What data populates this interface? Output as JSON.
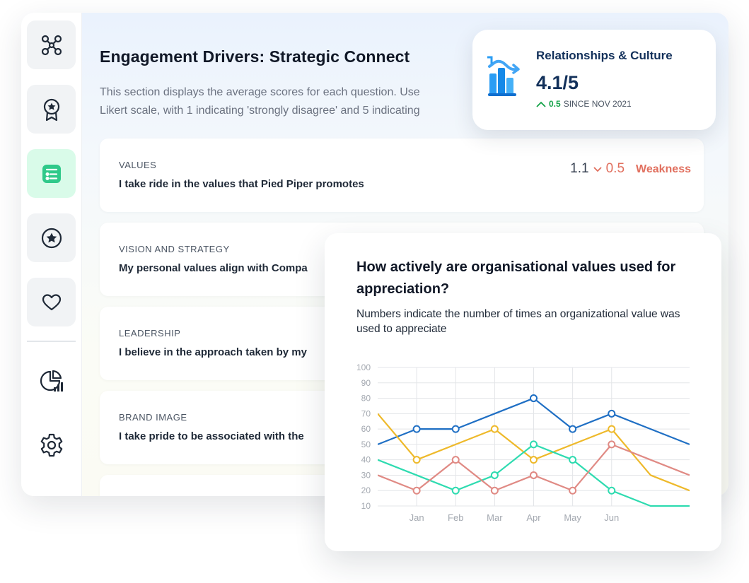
{
  "sidebar": {
    "items": [
      {
        "icon": "network-icon"
      },
      {
        "icon": "award-ribbon-icon"
      },
      {
        "icon": "list-checklist-icon",
        "active": true,
        "accent": "#2fc98a"
      },
      {
        "icon": "star-circle-icon"
      },
      {
        "icon": "heart-icon"
      },
      {
        "icon": "pie-chart-report-icon"
      },
      {
        "icon": "gear-icon"
      }
    ]
  },
  "page": {
    "title": "Engagement Drivers: Strategic Connect",
    "description_line1": "This section displays the average scores for each question. Use",
    "description_line2": "Likert scale, with 1 indicating 'strongly disagree' and 5 indicating"
  },
  "questions": [
    {
      "category": "VALUES",
      "text": "I take ride in the values that Pied Piper promotes",
      "score": "1.1",
      "change": "0.5",
      "tag": "Weakness",
      "tag_color": "#e1705f"
    },
    {
      "category": "VISION AND STRATEGY",
      "text": "My personal values align with Compa"
    },
    {
      "category": "LEADERSHIP",
      "text": "I believe in the approach taken by my"
    },
    {
      "category": "BRAND IMAGE",
      "text": "I take pride to be associated with the"
    }
  ],
  "stat_card": {
    "title": "Relationships & Culture",
    "value": "4.1/5",
    "change": "0.5",
    "since": "SINCE NOV 2021",
    "icon": "bar-chart-growth-icon",
    "accent": "#2a9df4"
  },
  "chart_card": {
    "title": "How actively are organisational values used for appreciation?",
    "subtitle": "Numbers indicate the number of times an organizational value was used to appreciate"
  },
  "chart_data": {
    "type": "line",
    "categories": [
      "Jan",
      "Feb",
      "Mar",
      "Apr",
      "May",
      "Jun"
    ],
    "x_range": [
      -1,
      7
    ],
    "y_ticks": [
      10,
      20,
      30,
      40,
      50,
      60,
      70,
      80,
      90,
      100
    ],
    "ylim": [
      10,
      100
    ],
    "grid": true,
    "series": [
      {
        "color": "#1f6fc4",
        "x": [
          -1,
          0,
          1,
          2,
          3,
          4,
          5,
          6,
          7
        ],
        "y": [
          50,
          60,
          60,
          70,
          80,
          60,
          70,
          60,
          50
        ],
        "markers": [
          0,
          1,
          3,
          4,
          5
        ]
      },
      {
        "color": "#eeb92a",
        "x": [
          -1,
          0,
          1,
          2,
          3,
          4,
          5,
          6,
          7
        ],
        "y": [
          70,
          40,
          50,
          60,
          40,
          50,
          60,
          30,
          20
        ],
        "markers": [
          0,
          2,
          3,
          5
        ]
      },
      {
        "color": "#2edbb0",
        "x": [
          -1,
          0,
          1,
          2,
          3,
          4,
          5,
          6,
          7
        ],
        "y": [
          40,
          30,
          20,
          30,
          50,
          40,
          20,
          10,
          10
        ],
        "markers": [
          1,
          2,
          3,
          4,
          5
        ]
      },
      {
        "color": "#e08a84",
        "x": [
          -1,
          0,
          1,
          2,
          3,
          4,
          5,
          6,
          7
        ],
        "y": [
          30,
          20,
          40,
          20,
          30,
          20,
          50,
          40,
          30
        ],
        "markers": [
          0,
          1,
          2,
          3,
          4,
          5
        ]
      }
    ]
  }
}
